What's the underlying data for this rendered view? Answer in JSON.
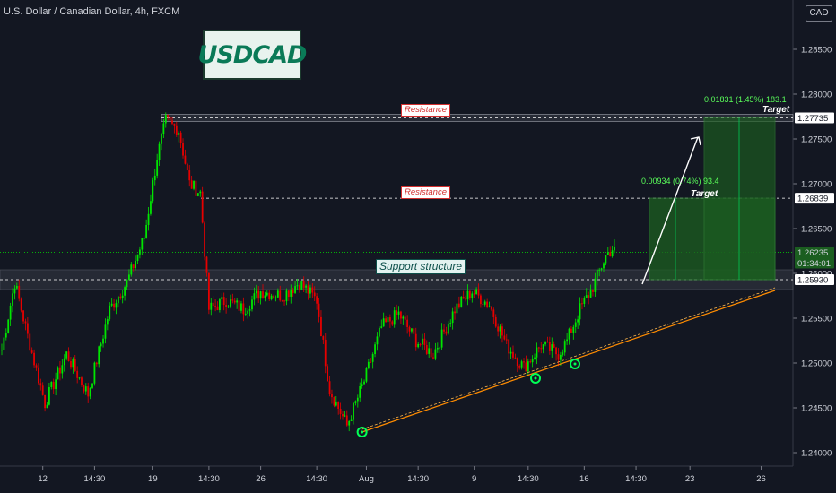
{
  "header": {
    "title": "U.S. Dollar / Canadian Dollar, 4h, FXCM",
    "currency_button": "CAD"
  },
  "annotations": {
    "badge": "USDCAD",
    "resistance_upper": "Resistance",
    "resistance_lower": "Resistance",
    "support": "Support structure",
    "measure_upper": "0.01831 (1.45%) 183.1",
    "measure_lower": "0.00934 (0.74%) 93.4",
    "target_upper": "Target",
    "target_lower": "Target"
  },
  "price_tags": {
    "upper_resistance": "1.27735",
    "lower_resistance": "1.26839",
    "current_price": "1.26235",
    "countdown": "01:34:01",
    "support": "1.25930"
  },
  "colors": {
    "background": "#131722",
    "up_candle": "#00e600",
    "down_candle": "#e60000",
    "trendline": "#ff8c00",
    "target_box": "#1b5e20",
    "accent": "#00ff55"
  },
  "chart_data": {
    "type": "candlestick",
    "symbol": "USDCAD",
    "timeframe": "4h",
    "yaxis_ticks": [
      "1.28500",
      "1.28000",
      "1.27500",
      "1.27000",
      "1.26500",
      "1.26000",
      "1.25500",
      "1.25000",
      "1.24500",
      "1.24000"
    ],
    "xaxis_ticks": [
      "12",
      "14:30",
      "19",
      "14:30",
      "26",
      "14:30",
      "Aug",
      "14:30",
      "9",
      "14:30",
      "16",
      "14:30",
      "23",
      "26"
    ],
    "ylim": [
      1.2385,
      1.2905
    ],
    "levels": {
      "resistance_upper": 1.27735,
      "resistance_lower": 1.26839,
      "support": 1.2593,
      "current": 1.26235
    },
    "keypoints": [
      {
        "i": 0,
        "p": 1.2515
      },
      {
        "i": 6,
        "p": 1.259
      },
      {
        "i": 12,
        "p": 1.253
      },
      {
        "i": 20,
        "p": 1.2455
      },
      {
        "i": 30,
        "p": 1.251
      },
      {
        "i": 40,
        "p": 1.2465
      },
      {
        "i": 50,
        "p": 1.256
      },
      {
        "i": 58,
        "p": 1.259
      },
      {
        "i": 66,
        "p": 1.264
      },
      {
        "i": 72,
        "p": 1.273
      },
      {
        "i": 76,
        "p": 1.277
      },
      {
        "i": 82,
        "p": 1.276
      },
      {
        "i": 87,
        "p": 1.27
      },
      {
        "i": 92,
        "p": 1.269
      },
      {
        "i": 96,
        "p": 1.256
      },
      {
        "i": 104,
        "p": 1.257
      },
      {
        "i": 112,
        "p": 1.256
      },
      {
        "i": 120,
        "p": 1.258
      },
      {
        "i": 130,
        "p": 1.2575
      },
      {
        "i": 138,
        "p": 1.259
      },
      {
        "i": 146,
        "p": 1.257
      },
      {
        "i": 152,
        "p": 1.247
      },
      {
        "i": 160,
        "p": 1.243
      },
      {
        "i": 168,
        "p": 1.248
      },
      {
        "i": 176,
        "p": 1.254
      },
      {
        "i": 184,
        "p": 1.2555
      },
      {
        "i": 192,
        "p": 1.2525
      },
      {
        "i": 200,
        "p": 1.251
      },
      {
        "i": 210,
        "p": 1.256
      },
      {
        "i": 218,
        "p": 1.258
      },
      {
        "i": 226,
        "p": 1.2565
      },
      {
        "i": 234,
        "p": 1.252
      },
      {
        "i": 242,
        "p": 1.2495
      },
      {
        "i": 250,
        "p": 1.252
      },
      {
        "i": 258,
        "p": 1.251
      },
      {
        "i": 262,
        "p": 1.2525
      },
      {
        "i": 268,
        "p": 1.256
      },
      {
        "i": 274,
        "p": 1.2585
      },
      {
        "i": 280,
        "p": 1.262
      },
      {
        "i": 284,
        "p": 1.263
      }
    ]
  }
}
